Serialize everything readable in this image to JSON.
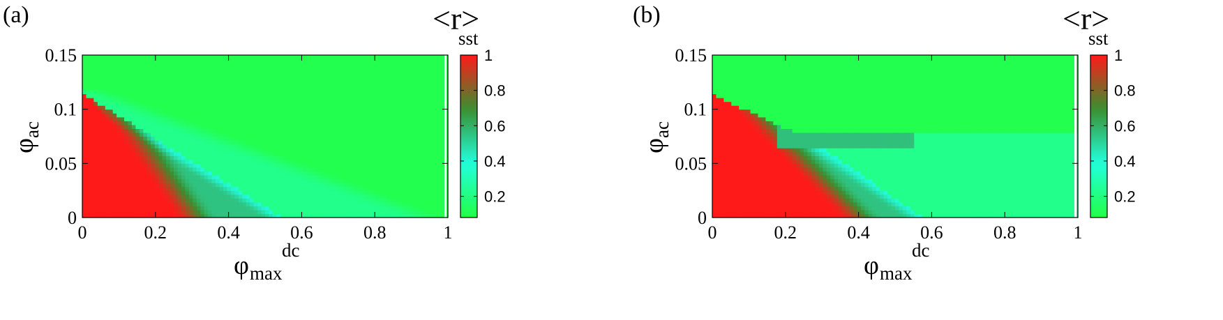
{
  "chart_data": [
    {
      "type": "heatmap",
      "panel_label": "(a)",
      "xlabel": "φ",
      "xlabel_sub": "max",
      "xlabel_sup": "dc",
      "ylabel": "φ",
      "ylabel_sub": "ac",
      "colorbar_title": "<r>",
      "colorbar_title_sub": "sst",
      "xlim": [
        0,
        1
      ],
      "ylim": [
        0,
        0.15
      ],
      "clim": [
        0.08,
        1
      ],
      "x_ticks": [
        "0",
        "0.2",
        "0.4",
        "0.6",
        "0.8",
        "1"
      ],
      "y_ticks": [
        "0",
        "0.05",
        "0.1",
        "0.15"
      ],
      "colorbar_ticks": [
        "0.2",
        "0.4",
        "0.6",
        "0.8",
        "1"
      ],
      "colormap": [
        "#22ff44",
        "#22ffdd",
        "#3a8f30",
        "#ff1a1a"
      ],
      "regions": [
        {
          "description_value": "high synchrony (red)",
          "approx_r": 1.0,
          "x_at_phi_ac_0": 0.22,
          "x_at_phi_ac_0.11": 0.0
        },
        {
          "description_value": "partial (dark green)",
          "approx_r": 0.6,
          "x_at_phi_ac_0": 0.55
        },
        {
          "description_value": "low (cyan)",
          "approx_r": 0.25,
          "x_at_phi_ac_0": 0.62
        },
        {
          "description_value": "incoherent (green)",
          "approx_r": 0.1,
          "phi_ac_above": 0.11
        }
      ]
    },
    {
      "type": "heatmap",
      "panel_label": "(b)",
      "xlabel": "φ",
      "xlabel_sub": "max",
      "xlabel_sup": "dc",
      "ylabel": "φ",
      "ylabel_sub": "ac",
      "colorbar_title": "<r>",
      "colorbar_title_sub": "sst",
      "xlim": [
        0,
        1
      ],
      "ylim": [
        0,
        0.15
      ],
      "clim": [
        0.08,
        1
      ],
      "x_ticks": [
        "0",
        "0.2",
        "0.4",
        "0.6",
        "0.8",
        "1"
      ],
      "y_ticks": [
        "0",
        "0.05",
        "0.1",
        "0.15"
      ],
      "colorbar_ticks": [
        "0.2",
        "0.4",
        "0.6",
        "0.8",
        "1"
      ],
      "colormap": [
        "#22ff44",
        "#22ffdd",
        "#3a8f30",
        "#ff1a1a"
      ],
      "regions": [
        {
          "description_value": "high synchrony (red)",
          "approx_r": 1.0,
          "x_at_phi_ac_0": 0.33
        },
        {
          "description_value": "partial (dark green)",
          "approx_r": 0.6,
          "x_at_phi_ac_0": 0.57
        },
        {
          "description_value": "low (cyan)",
          "approx_r": 0.25,
          "phi_ac_below": 0.08
        },
        {
          "description_value": "incoherent (green)",
          "approx_r": 0.1,
          "phi_ac_above": 0.08
        }
      ]
    }
  ]
}
